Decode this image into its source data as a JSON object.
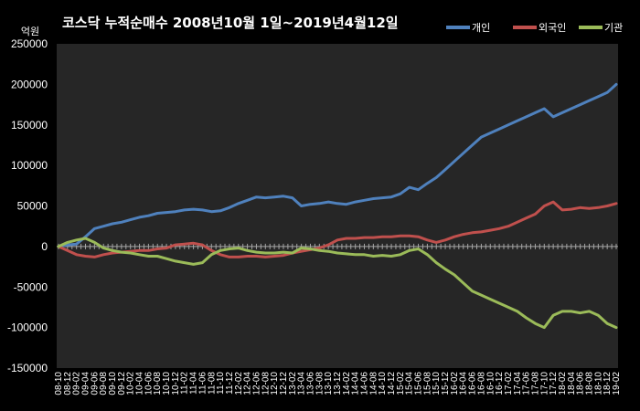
{
  "chart_data": {
    "type": "line",
    "title": "코스닥  누적순매수 2008년10월 1일~2019년4월12일",
    "ylabel": "억원",
    "xlabel": "",
    "ylim": [
      -150000,
      250000
    ],
    "yticks": [
      250000,
      200000,
      150000,
      100000,
      50000,
      0,
      -50000,
      -100000,
      -150000
    ],
    "grid": false,
    "legend_position": "top-right",
    "x": [
      "08-10",
      "08-12",
      "09-02",
      "09-04",
      "09-06",
      "09-08",
      "09-10",
      "09-12",
      "10-02",
      "10-04",
      "10-06",
      "10-08",
      "10-10",
      "10-12",
      "11-02",
      "11-04",
      "11-06",
      "11-08",
      "11-10",
      "11-12",
      "12-02",
      "12-04",
      "12-06",
      "12-08",
      "12-10",
      "12-12",
      "13-02",
      "13-04",
      "13-06",
      "13-08",
      "13-10",
      "13-12",
      "14-02",
      "14-04",
      "14-06",
      "14-08",
      "14-10",
      "14-12",
      "15-02",
      "15-04",
      "15-06",
      "15-08",
      "15-10",
      "15-12",
      "16-02",
      "16-04",
      "16-06",
      "16-08",
      "16-10",
      "16-12",
      "17-02",
      "17-04",
      "17-06",
      "17-08",
      "17-10",
      "17-12",
      "18-02",
      "18-04",
      "18-06",
      "18-08",
      "18-10",
      "18-12",
      "19-02"
    ],
    "series": [
      {
        "name": "개인",
        "color": "#4f81bd",
        "values": [
          0,
          2000,
          3000,
          12000,
          22000,
          25000,
          28000,
          30000,
          33000,
          36000,
          38000,
          41000,
          42000,
          43000,
          45000,
          46000,
          45000,
          43000,
          44000,
          48000,
          53000,
          57000,
          61000,
          60000,
          61000,
          62000,
          60000,
          50000,
          52000,
          53000,
          55000,
          53000,
          52000,
          55000,
          57000,
          59000,
          60000,
          61000,
          65000,
          73000,
          70000,
          78000,
          85000,
          95000,
          105000,
          115000,
          125000,
          135000,
          140000,
          145000,
          150000,
          155000,
          160000,
          165000,
          170000,
          160000,
          165000,
          170000,
          175000,
          180000,
          185000,
          190000,
          200000
        ]
      },
      {
        "name": "외국인",
        "color": "#c0504d",
        "values": [
          0,
          -5000,
          -10000,
          -12000,
          -13000,
          -10000,
          -8000,
          -7000,
          -6000,
          -5000,
          -5000,
          -3000,
          -2000,
          2000,
          3000,
          4000,
          2000,
          -5000,
          -10000,
          -13000,
          -13000,
          -12000,
          -12000,
          -13000,
          -12000,
          -11000,
          -8000,
          -6000,
          -4000,
          -2000,
          2000,
          8000,
          10000,
          10000,
          11000,
          11000,
          12000,
          12000,
          13000,
          13000,
          12000,
          8000,
          5000,
          8000,
          12000,
          15000,
          17000,
          18000,
          20000,
          22000,
          25000,
          30000,
          35000,
          40000,
          50000,
          55000,
          45000,
          46000,
          48000,
          47000,
          48000,
          50000,
          53000
        ]
      },
      {
        "name": "기관",
        "color": "#9bbb59",
        "values": [
          0,
          5000,
          8000,
          10000,
          5000,
          -2000,
          -5000,
          -7000,
          -8000,
          -10000,
          -12000,
          -12000,
          -15000,
          -18000,
          -20000,
          -22000,
          -20000,
          -10000,
          -5000,
          -3000,
          -2000,
          -5000,
          -7000,
          -8000,
          -8000,
          -7000,
          -8000,
          -2000,
          -3000,
          -5000,
          -6000,
          -8000,
          -9000,
          -10000,
          -10000,
          -12000,
          -11000,
          -12000,
          -10000,
          -5000,
          -3000,
          -10000,
          -20000,
          -28000,
          -35000,
          -45000,
          -55000,
          -60000,
          -65000,
          -70000,
          -75000,
          -80000,
          -88000,
          -95000,
          -100000,
          -85000,
          -80000,
          -80000,
          -82000,
          -80000,
          -85000,
          -95000,
          -100000
        ]
      }
    ]
  }
}
